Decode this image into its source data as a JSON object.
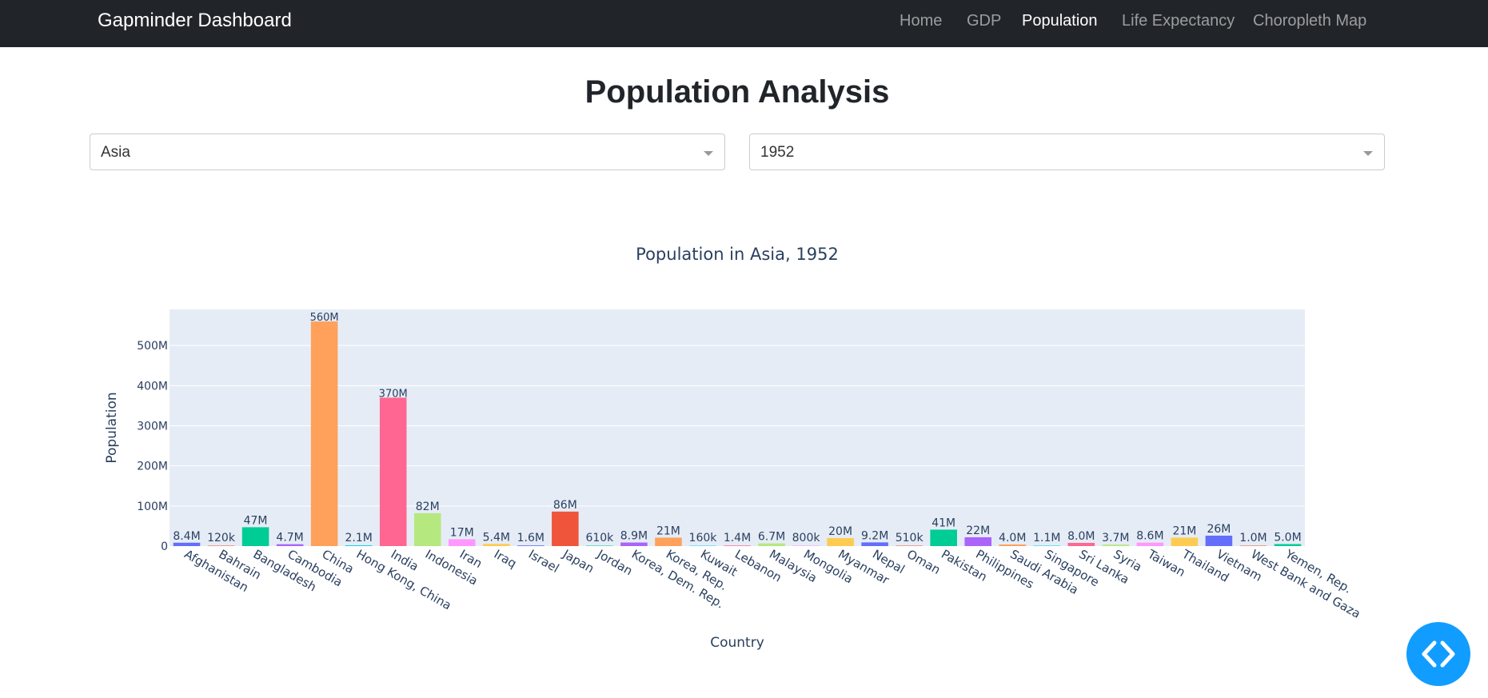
{
  "navbar": {
    "brand": "Gapminder Dashboard",
    "links": [
      {
        "label": "Home",
        "active": false
      },
      {
        "label": "GDP",
        "active": false
      },
      {
        "label": "Population",
        "active": true
      },
      {
        "label": "Life Expectancy",
        "active": false
      },
      {
        "label": "Choropleth Map",
        "active": false
      }
    ]
  },
  "page": {
    "title": "Population Analysis"
  },
  "filters": {
    "continent": {
      "value": "Asia"
    },
    "year": {
      "value": "1952"
    }
  },
  "chart_data": {
    "type": "bar",
    "title": "Population in Asia, 1952",
    "xlabel": "Country",
    "ylabel": "Population",
    "ylim": [
      0,
      590000000
    ],
    "yticks": [
      0,
      100000000,
      200000000,
      300000000,
      400000000,
      500000000
    ],
    "ytick_labels": [
      "0",
      "100M",
      "200M",
      "300M",
      "400M",
      "500M"
    ],
    "grid": true,
    "categories": [
      "Afghanistan",
      "Bahrain",
      "Bangladesh",
      "Cambodia",
      "China",
      "Hong Kong, China",
      "India",
      "Indonesia",
      "Iran",
      "Iraq",
      "Israel",
      "Japan",
      "Jordan",
      "Korea, Dem. Rep.",
      "Korea, Rep.",
      "Kuwait",
      "Lebanon",
      "Malaysia",
      "Mongolia",
      "Myanmar",
      "Nepal",
      "Oman",
      "Pakistan",
      "Philippines",
      "Saudi Arabia",
      "Singapore",
      "Sri Lanka",
      "Syria",
      "Taiwan",
      "Thailand",
      "Vietnam",
      "West Bank and Gaza",
      "Yemen, Rep."
    ],
    "values": [
      8400000,
      120000,
      47000000,
      4700000,
      560000000,
      2100000,
      370000000,
      82000000,
      17000000,
      5400000,
      1600000,
      86000000,
      610000,
      8900000,
      21000000,
      160000,
      1400000,
      6700000,
      800000,
      20000000,
      9200000,
      510000,
      41000000,
      22000000,
      4000000,
      1100000,
      8000000,
      3700000,
      8600000,
      21000000,
      26000000,
      1000000,
      5000000
    ],
    "value_labels": [
      "8.4M",
      "120k",
      "47M",
      "4.7M",
      "560M",
      "2.1M",
      "370M",
      "82M",
      "17M",
      "5.4M",
      "1.6M",
      "86M",
      "610k",
      "8.9M",
      "21M",
      "160k",
      "1.4M",
      "6.7M",
      "800k",
      "20M",
      "9.2M",
      "510k",
      "41M",
      "22M",
      "4.0M",
      "1.1M",
      "8.0M",
      "3.7M",
      "8.6M",
      "21M",
      "26M",
      "1.0M",
      "5.0M"
    ],
    "colors": [
      "#636efa",
      "#ef553b",
      "#00cc96",
      "#ab63fa",
      "#ffa15a",
      "#19d3f3",
      "#ff6692",
      "#b6e880",
      "#ff97ff",
      "#fecb52"
    ]
  }
}
